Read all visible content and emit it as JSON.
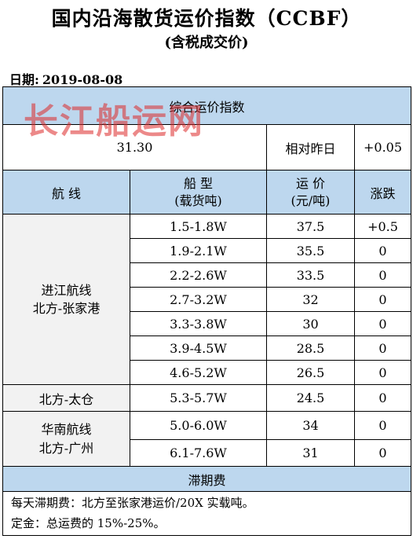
{
  "title": "国内沿海散货运价指数（CCBF）",
  "subtitle": "(含税成交价)",
  "date_label": "日期:",
  "date_value": "2019-08-08",
  "watermark": "长江船运网",
  "composite": {
    "label": "综合运价指数",
    "value": "31.30",
    "change_label": "相对昨日",
    "change_value": "+0.05"
  },
  "columns": {
    "route": "航 线",
    "ship_type": "船 型",
    "ship_type_unit": "(载货吨)",
    "price": "运 价",
    "price_unit": "(元/吨)",
    "change": "涨跌"
  },
  "groups": [
    {
      "route_line1": "进江航线",
      "route_line2": "北方-张家港",
      "rows": [
        {
          "ship": "1.5-1.8W",
          "price": "37.5",
          "change": "+0.5"
        },
        {
          "ship": "1.9-2.1W",
          "price": "35.5",
          "change": "0"
        },
        {
          "ship": "2.2-2.6W",
          "price": "33.5",
          "change": "0"
        },
        {
          "ship": "2.7-3.2W",
          "price": "32",
          "change": "0"
        },
        {
          "ship": "3.3-3.8W",
          "price": "30",
          "change": "0"
        },
        {
          "ship": "3.9-4.5W",
          "price": "28.5",
          "change": "0"
        },
        {
          "ship": "4.6-5.2W",
          "price": "26.5",
          "change": "0"
        }
      ]
    },
    {
      "route_line1": "北方-太仓",
      "route_line2": "",
      "rows": [
        {
          "ship": "5.3-5.7W",
          "price": "24.5",
          "change": "0"
        }
      ]
    },
    {
      "route_line1": "华南航线",
      "route_line2": "北方-广州",
      "rows": [
        {
          "ship": "5.0-6.0W",
          "price": "34",
          "change": "0"
        },
        {
          "ship": "6.1-7.6W",
          "price": "31",
          "change": "0"
        }
      ]
    }
  ],
  "demurrage": {
    "label": "滞期费",
    "note1": "每天滞期费：北方至张家港运价/20X 实载吨。",
    "note2": "定金：总运费的 15%-25%。"
  }
}
